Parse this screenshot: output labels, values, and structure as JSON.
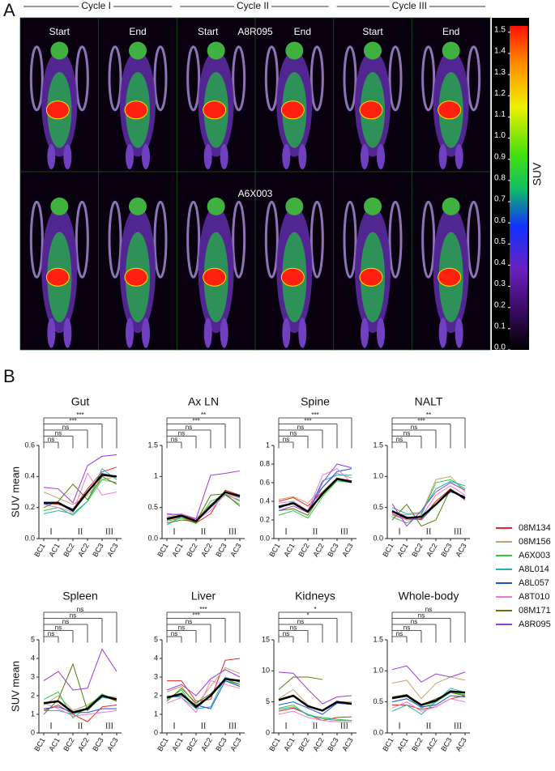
{
  "panel_a": {
    "label": "A",
    "cycles": [
      "Cycle I",
      "Cycle II",
      "Cycle III"
    ],
    "columns": [
      "Start",
      "End",
      "Start",
      "End",
      "Start",
      "End"
    ],
    "subjects": [
      "A8R095",
      "A6X003"
    ],
    "colorbar": {
      "label": "SUV",
      "lim": [
        0,
        1.53
      ],
      "ticks": [
        {
          "value": 0,
          "label": "0.0"
        },
        0.1,
        0.2,
        0.3,
        0.4,
        0.5,
        0.6,
        0.7,
        0.8,
        0.9,
        {
          "value": 1,
          "label": "1.0"
        },
        1.1,
        1.2,
        1.3,
        1.4,
        1.5
      ]
    }
  },
  "panel_b": {
    "label": "B"
  },
  "legend": {
    "entries": [
      {
        "name": "08M134",
        "color": "#e8251f"
      },
      {
        "name": "08M156",
        "color": "#c8a070"
      },
      {
        "name": "A6X003",
        "color": "#2ecc40"
      },
      {
        "name": "A8L014",
        "color": "#1fb5b0"
      },
      {
        "name": "A8L057",
        "color": "#1f4fe0"
      },
      {
        "name": "A8T010",
        "color": "#f07ad0"
      },
      {
        "name": "08M171",
        "color": "#5a7a10"
      },
      {
        "name": "A8R095",
        "color": "#9a3ae0"
      }
    ]
  },
  "chart_data": [
    {
      "type": "line",
      "title": "Gut",
      "ylabel": "SUV mean",
      "categories": [
        "BC1",
        "AC1",
        "BC2",
        "AC2",
        "BC3",
        "AC3"
      ],
      "annotations": [
        "I",
        "II",
        "III"
      ],
      "significance": [
        "ns",
        "ns",
        "ns",
        "***",
        "***"
      ],
      "ylim": [
        0,
        0.6
      ],
      "yticks": [
        {
          "value": 0,
          "label": "0.0"
        },
        0.2,
        0.4,
        0.6
      ],
      "series": [
        [
          0.23,
          0.22,
          0.19,
          0.32,
          0.43,
          0.46
        ],
        [
          0.3,
          0.26,
          0.22,
          0.28,
          0.38,
          0.4
        ],
        [
          0.18,
          0.2,
          0.15,
          0.24,
          0.38,
          0.36
        ],
        [
          0.16,
          0.18,
          0.16,
          0.24,
          0.45,
          0.38
        ],
        [
          0.22,
          0.23,
          0.19,
          0.3,
          0.42,
          0.4
        ],
        [
          0.22,
          0.2,
          0.17,
          0.42,
          0.28,
          0.3
        ],
        [
          0.2,
          0.24,
          0.35,
          0.25,
          0.4,
          0.35
        ],
        [
          0.33,
          0.32,
          0.23,
          0.47,
          0.53,
          0.54
        ]
      ],
      "mean": {
        "color": "#000000",
        "values": [
          0.23,
          0.23,
          0.18,
          0.3,
          0.41,
          0.4
        ]
      }
    },
    {
      "type": "line",
      "title": "Ax LN",
      "categories": [
        "BC1",
        "AC1",
        "BC2",
        "AC2",
        "BC3",
        "AC3"
      ],
      "annotations": [
        "I",
        "II",
        "III"
      ],
      "significance": [
        "ns",
        "ns",
        "ns",
        "***",
        "**"
      ],
      "ylim": [
        0,
        1.5
      ],
      "yticks": [
        {
          "value": 0,
          "label": "0.0"
        },
        0.5,
        1,
        1.5
      ],
      "series": [
        [
          0.3,
          0.35,
          0.25,
          0.4,
          0.78,
          0.7
        ],
        [
          0.35,
          0.4,
          0.32,
          0.55,
          0.72,
          0.65
        ],
        [
          0.28,
          0.33,
          0.24,
          0.6,
          0.7,
          0.55
        ],
        [
          0.22,
          0.35,
          0.3,
          0.5,
          0.7,
          0.62
        ],
        [
          0.32,
          0.38,
          0.28,
          0.5,
          0.75,
          0.7
        ],
        [
          0.38,
          0.4,
          0.3,
          0.45,
          0.72,
          0.6
        ],
        [
          0.25,
          0.3,
          0.27,
          0.7,
          0.72,
          0.52
        ],
        [
          0.4,
          0.38,
          0.32,
          1.02,
          1.05,
          1.09
        ]
      ],
      "mean": {
        "color": "#000000",
        "values": [
          0.32,
          0.37,
          0.28,
          0.52,
          0.75,
          0.68
        ]
      }
    },
    {
      "type": "line",
      "title": "Spine",
      "categories": [
        "BC1",
        "AC1",
        "BC2",
        "AC2",
        "BC3",
        "AC3"
      ],
      "annotations": [
        "I",
        "II",
        "III"
      ],
      "significance": [
        "ns",
        "ns",
        "ns",
        "***",
        "***"
      ],
      "ylim": [
        0,
        1
      ],
      "yticks": [
        {
          "value": 0,
          "label": "0.0"
        },
        0.2,
        0.4,
        0.6,
        0.8,
        1
      ],
      "series": [
        [
          0.4,
          0.44,
          0.35,
          0.5,
          0.65,
          0.62
        ],
        [
          0.42,
          0.45,
          0.38,
          0.55,
          0.7,
          0.65
        ],
        [
          0.25,
          0.3,
          0.22,
          0.45,
          0.62,
          0.6
        ],
        [
          0.32,
          0.4,
          0.28,
          0.62,
          0.68,
          0.68
        ],
        [
          0.35,
          0.38,
          0.3,
          0.55,
          0.72,
          0.75
        ],
        [
          0.38,
          0.4,
          0.3,
          0.68,
          0.75,
          0.6
        ],
        [
          0.3,
          0.32,
          0.25,
          0.5,
          0.65,
          0.6
        ],
        [
          0.3,
          0.35,
          0.28,
          0.6,
          0.8,
          0.76
        ]
      ],
      "mean": {
        "color": "#000000",
        "values": [
          0.34,
          0.38,
          0.29,
          0.48,
          0.64,
          0.61
        ]
      }
    },
    {
      "type": "line",
      "title": "NALT",
      "categories": [
        "BC1",
        "AC1",
        "BC2",
        "AC2",
        "BC3",
        "AC3"
      ],
      "annotations": [
        "I",
        "II",
        "III"
      ],
      "significance": [
        "ns",
        "ns",
        "ns",
        "***",
        "**"
      ],
      "ylim": [
        0,
        1.5
      ],
      "yticks": [
        {
          "value": 0,
          "label": "0.0"
        },
        0.5,
        {
          "value": 1,
          "label": "1.0"
        },
        1.5
      ],
      "series": [
        [
          0.4,
          0.3,
          0.32,
          0.6,
          0.8,
          0.62
        ],
        [
          0.42,
          0.38,
          0.4,
          0.95,
          1.0,
          0.75
        ],
        [
          0.35,
          0.25,
          0.38,
          0.9,
          0.95,
          0.8
        ],
        [
          0.5,
          0.4,
          0.42,
          0.8,
          0.92,
          0.85
        ],
        [
          0.45,
          0.35,
          0.3,
          0.55,
          0.75,
          0.68
        ],
        [
          0.38,
          0.3,
          0.35,
          0.7,
          0.85,
          0.7
        ],
        [
          0.3,
          0.55,
          0.2,
          0.3,
          0.8,
          0.65
        ],
        [
          0.56,
          0.2,
          0.45,
          0.75,
          0.9,
          0.78
        ]
      ],
      "mean": {
        "color": "#000000",
        "values": [
          0.44,
          0.33,
          0.35,
          0.55,
          0.78,
          0.65
        ]
      }
    },
    {
      "type": "line",
      "title": "Spleen",
      "ylabel": "SUV mean",
      "categories": [
        "BC1",
        "AC1",
        "BC2",
        "AC2",
        "BC3",
        "AC3"
      ],
      "annotations": [
        "I",
        "II",
        "III"
      ],
      "significance": [
        "ns",
        "ns",
        "ns",
        "ns",
        "ns"
      ],
      "ylim": [
        0,
        5
      ],
      "yticks": [
        0,
        1,
        2,
        3,
        4,
        5
      ],
      "series": [
        [
          1.2,
          1.5,
          1.0,
          0.6,
          1.4,
          1.5
        ],
        [
          1.5,
          2.0,
          1.2,
          1.5,
          2.0,
          1.9
        ],
        [
          1.8,
          2.2,
          0.8,
          1.4,
          2.1,
          1.7
        ],
        [
          1.2,
          1.2,
          1.0,
          1.3,
          1.9,
          1.8
        ],
        [
          1.3,
          1.4,
          1.1,
          1.1,
          1.3,
          1.3
        ],
        [
          1.6,
          1.3,
          0.9,
          1.0,
          1.1,
          1.2
        ],
        [
          1.0,
          1.8,
          3.7,
          1.2,
          2.0,
          1.7
        ],
        [
          2.8,
          3.3,
          2.3,
          2.4,
          4.5,
          3.3
        ]
      ],
      "mean": {
        "color": "#000000",
        "values": [
          1.6,
          1.7,
          1.1,
          1.3,
          2.0,
          1.8
        ]
      }
    },
    {
      "type": "line",
      "title": "Liver",
      "categories": [
        "BC1",
        "AC1",
        "BC2",
        "AC2",
        "BC3",
        "AC3"
      ],
      "annotations": [
        "I",
        "II",
        "III"
      ],
      "significance": [
        "ns",
        "ns",
        "ns",
        "***",
        "***"
      ],
      "ylim": [
        0,
        5
      ],
      "yticks": [
        0,
        1,
        2,
        3,
        4,
        5
      ],
      "series": [
        [
          2.8,
          2.8,
          1.7,
          1.8,
          3.9,
          4.0
        ],
        [
          2.2,
          2.5,
          1.5,
          2.5,
          3.5,
          3.2
        ],
        [
          1.8,
          2.3,
          1.3,
          2.0,
          2.8,
          2.6
        ],
        [
          2.0,
          1.9,
          1.3,
          1.4,
          3.0,
          2.7
        ],
        [
          1.9,
          2.0,
          1.5,
          1.3,
          2.8,
          2.5
        ],
        [
          1.6,
          1.9,
          1.1,
          2.8,
          2.6,
          2.4
        ],
        [
          1.7,
          2.4,
          1.6,
          2.1,
          2.9,
          2.6
        ],
        [
          2.3,
          2.6,
          2.0,
          2.9,
          3.4,
          3.0
        ]
      ],
      "mean": {
        "color": "#000000",
        "values": [
          1.9,
          2.1,
          1.4,
          2.0,
          2.9,
          2.8
        ]
      }
    },
    {
      "type": "line",
      "title": "Kidneys",
      "categories": [
        "BC1",
        "AC1",
        "BC2",
        "AC2",
        "BC3",
        "AC3"
      ],
      "annotations": [
        "I",
        "II",
        "III"
      ],
      "significance": [
        "ns",
        "ns",
        "ns",
        "*",
        "*"
      ],
      "ylim": [
        0,
        15
      ],
      "yticks": [
        0,
        5,
        10,
        15
      ],
      "series": [
        [
          3.5,
          4.0,
          3.0,
          2.0,
          2.5,
          2.6
        ],
        [
          5.5,
          7.0,
          4.5,
          3.5,
          5.0,
          5.0
        ],
        [
          4.0,
          4.5,
          2.8,
          2.5,
          2.2,
          2.0
        ],
        [
          3.8,
          4.2,
          3.0,
          2.3,
          2.0,
          2.0
        ],
        [
          4.5,
          5.0,
          4.0,
          3.0,
          4.8,
          4.6
        ],
        [
          3.0,
          3.5,
          2.5,
          2.0,
          1.8,
          1.8
        ],
        [
          7.0,
          9.0,
          9.0,
          8.6,
          null,
          null
        ],
        [
          9.8,
          9.6,
          7.0,
          4.7,
          5.8,
          6.0
        ]
      ],
      "mean": {
        "color": "#000000",
        "values": [
          5.3,
          6.0,
          4.3,
          3.6,
          5.0,
          4.7
        ]
      }
    },
    {
      "type": "line",
      "title": "Whole-body",
      "categories": [
        "BC1",
        "AC1",
        "BC2",
        "AC2",
        "BC3",
        "AC3"
      ],
      "annotations": [
        "I",
        "II",
        "III"
      ],
      "significance": [
        "ns",
        "ns",
        "ns",
        "ns",
        "ns"
      ],
      "ylim": [
        0,
        1.5
      ],
      "yticks": [
        {
          "value": 0,
          "label": "0.0"
        },
        0.5,
        {
          "value": 1,
          "label": "1.0"
        },
        1.5
      ],
      "series": [
        [
          0.45,
          0.45,
          0.38,
          0.42,
          0.55,
          0.6
        ],
        [
          0.8,
          0.85,
          0.55,
          0.8,
          0.9,
          0.85
        ],
        [
          0.55,
          0.6,
          0.4,
          0.5,
          0.65,
          0.62
        ],
        [
          0.35,
          0.45,
          0.3,
          0.5,
          0.72,
          0.65
        ],
        [
          0.5,
          0.55,
          0.42,
          0.45,
          0.6,
          0.58
        ],
        [
          0.4,
          0.5,
          0.35,
          0.42,
          0.55,
          0.5
        ],
        [
          0.58,
          0.62,
          0.45,
          0.55,
          0.65,
          0.6
        ],
        [
          1.02,
          1.08,
          0.82,
          0.95,
          0.9,
          0.98
        ]
      ],
      "mean": {
        "color": "#000000",
        "values": [
          0.56,
          0.6,
          0.45,
          0.52,
          0.67,
          0.65
        ]
      }
    }
  ]
}
